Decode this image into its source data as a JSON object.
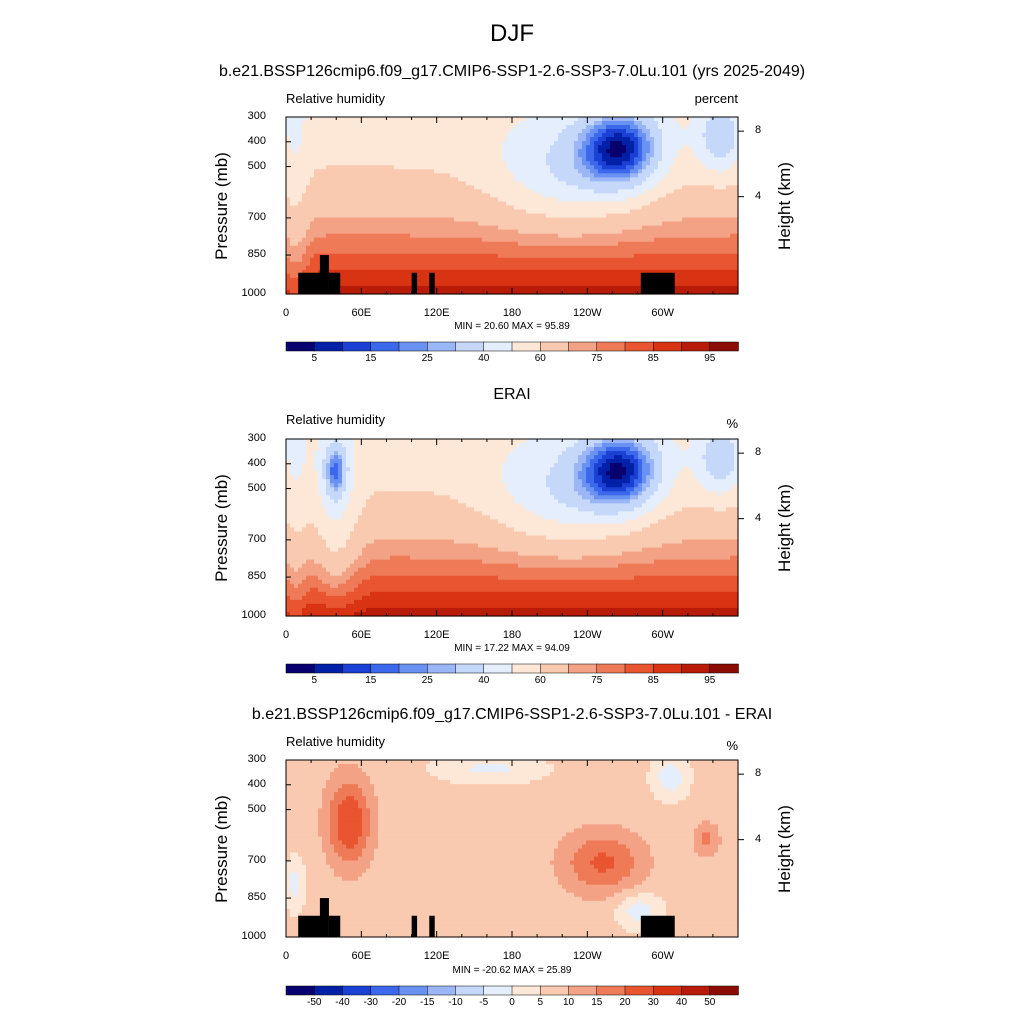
{
  "main_title": "DJF",
  "chart_data": [
    {
      "type": "contour",
      "title": "b.e21.BSSP126cmip6.f09_g17.CMIP6-SSP1-2.6-SSP3-7.0Lu.101 (yrs 2025-2049)",
      "left_label": "Relative humidity",
      "right_label": "percent",
      "xlabel_ticks": [
        "0",
        "60E",
        "120E",
        "180",
        "120W",
        "60W"
      ],
      "yticks_left": [
        "300",
        "400",
        "500",
        "700",
        "850",
        "1000"
      ],
      "ylabel_left": "Pressure (mb)",
      "yticks_right": [
        "8",
        "4"
      ],
      "ylabel_right": "Height (km)",
      "minmax": "MIN = 20.60  MAX = 95.89",
      "min": 20.6,
      "max": 95.89,
      "colorbar_labels": [
        "5",
        "15",
        "25",
        "40",
        "60",
        "75",
        "85",
        "95"
      ]
    },
    {
      "type": "contour",
      "title": "ERAI",
      "left_label": "Relative humidity",
      "right_label": "%",
      "xlabel_ticks": [
        "0",
        "60E",
        "120E",
        "180",
        "120W",
        "60W"
      ],
      "yticks_left": [
        "300",
        "400",
        "500",
        "700",
        "850",
        "1000"
      ],
      "ylabel_left": "Pressure (mb)",
      "yticks_right": [
        "8",
        "4"
      ],
      "ylabel_right": "Height (km)",
      "minmax": "MIN = 17.22  MAX = 94.09",
      "min": 17.22,
      "max": 94.09,
      "colorbar_labels": [
        "5",
        "15",
        "25",
        "40",
        "60",
        "75",
        "85",
        "95"
      ]
    },
    {
      "type": "contour",
      "title": "b.e21.BSSP126cmip6.f09_g17.CMIP6-SSP1-2.6-SSP3-7.0Lu.101 - ERAI",
      "left_label": "Relative humidity",
      "right_label": "%",
      "xlabel_ticks": [
        "0",
        "60E",
        "120E",
        "180",
        "120W",
        "60W"
      ],
      "yticks_left": [
        "300",
        "400",
        "500",
        "700",
        "850",
        "1000"
      ],
      "ylabel_left": "Pressure (mb)",
      "yticks_right": [
        "8",
        "4"
      ],
      "ylabel_right": "Height (km)",
      "minmax": "MIN = -20.62  MAX = 25.89",
      "min": -20.62,
      "max": 25.89,
      "colorbar_labels": [
        "-50",
        "-40",
        "-30",
        "-20",
        "-15",
        "-10",
        "-5",
        "0",
        "5",
        "10",
        "15",
        "20",
        "30",
        "40",
        "50"
      ]
    }
  ],
  "colors": {
    "palette": [
      "#08006e",
      "#0020a8",
      "#1a40d4",
      "#3c68ec",
      "#6a92f2",
      "#9bb6f6",
      "#c6d8fa",
      "#e4eefc",
      "#fde8d8",
      "#f9c9b0",
      "#f4a286",
      "#ee7a58",
      "#e85530",
      "#d83414",
      "#b81c08",
      "#8a0c02",
      "#6a0000"
    ],
    "outline": "#000000"
  }
}
